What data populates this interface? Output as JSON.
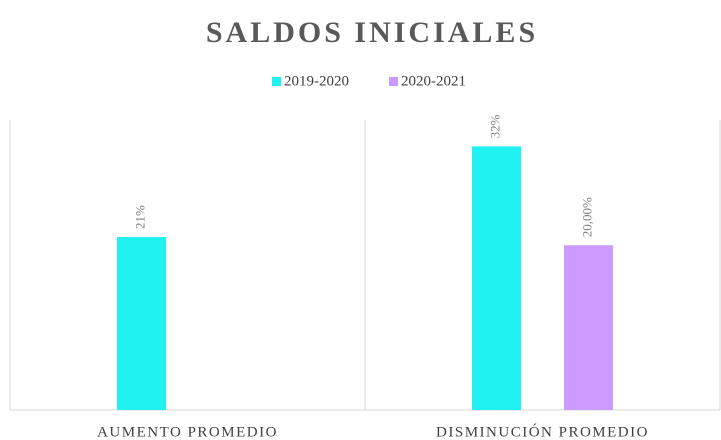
{
  "chart_data": {
    "type": "bar",
    "title": "SALDOS INICIALES",
    "categories": [
      "AUMENTO PROMEDIO",
      "DISMINUCIÓN PROMEDIO"
    ],
    "series": [
      {
        "name": "2019-2020",
        "color": "#1ff2f0",
        "values": [
          21,
          32
        ],
        "value_labels": [
          "21%",
          "32%"
        ]
      },
      {
        "name": "2020-2021",
        "color": "#cc9bff",
        "values": [
          null,
          20
        ],
        "value_labels": [
          null,
          "20,00%"
        ]
      }
    ],
    "grid": false,
    "legend": "top"
  }
}
